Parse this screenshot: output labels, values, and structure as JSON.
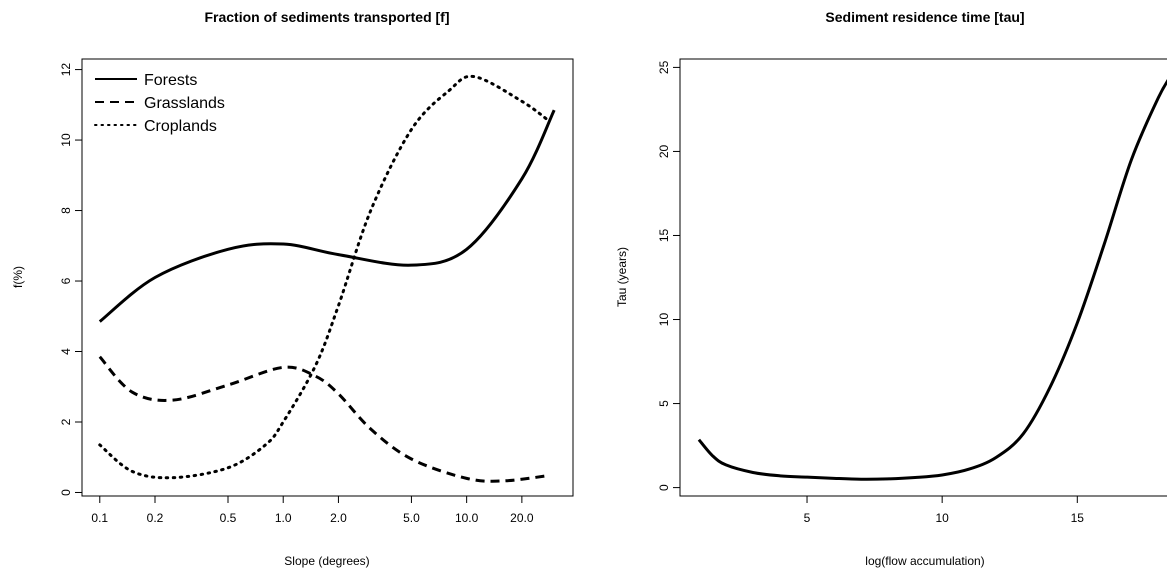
{
  "chart_data": [
    {
      "type": "line",
      "title": "Fraction of sediments transported [f]",
      "xlabel": "Slope (degrees)",
      "ylabel": "f(%)",
      "xscale": "log",
      "xlim": [
        0.08,
        38
      ],
      "ylim": [
        -0.1,
        12.3
      ],
      "xticks": [
        "0.1",
        "0.2",
        "0.5",
        "1.0",
        "2.0",
        "5.0",
        "10.0",
        "20.0"
      ],
      "yticks": [
        "0",
        "2",
        "4",
        "6",
        "8",
        "10",
        "12"
      ],
      "legend": "top-left",
      "series": [
        {
          "name": "Forests",
          "style": "solid",
          "x": [
            0.1,
            0.2,
            0.5,
            1.0,
            2.0,
            5.0,
            10.0,
            20.0,
            30.0
          ],
          "y": [
            4.85,
            6.1,
            6.9,
            7.05,
            6.75,
            6.45,
            6.9,
            8.9,
            10.85
          ]
        },
        {
          "name": "Grasslands",
          "style": "dashed",
          "x": [
            0.1,
            0.15,
            0.25,
            0.5,
            1.0,
            1.5,
            2.0,
            3.0,
            5.0,
            10.0,
            16.0,
            28.0
          ],
          "y": [
            3.85,
            2.85,
            2.62,
            3.05,
            3.55,
            3.3,
            2.8,
            1.8,
            0.95,
            0.4,
            0.33,
            0.48
          ]
        },
        {
          "name": "Croplands",
          "style": "dotted",
          "x": [
            0.1,
            0.15,
            0.25,
            0.5,
            0.8,
            1.0,
            1.5,
            2.0,
            3.0,
            5.0,
            8.0,
            11.0,
            20.0,
            28.0
          ],
          "y": [
            1.35,
            0.6,
            0.42,
            0.7,
            1.35,
            2.0,
            3.6,
            5.3,
            8.0,
            10.3,
            11.4,
            11.8,
            11.1,
            10.55
          ]
        }
      ]
    },
    {
      "type": "line",
      "title": "Sediment residence time [tau]",
      "xlabel": "log(flow accumulation)",
      "ylabel": "Tau (years)",
      "xlim": [
        0.3,
        18.8
      ],
      "ylim": [
        -0.5,
        25.5
      ],
      "xticks": [
        "5",
        "10",
        "15"
      ],
      "yticks": [
        "0",
        "5",
        "10",
        "15",
        "20",
        "25"
      ],
      "series": [
        {
          "name": "",
          "style": "solid",
          "x": [
            1.0,
            1.5,
            2.0,
            3.0,
            4.0,
            5.0,
            6.0,
            7.0,
            8.0,
            9.0,
            10.0,
            11.0,
            12.0,
            13.0,
            14.0,
            15.0,
            16.0,
            17.0,
            18.0,
            18.5
          ],
          "y": [
            2.85,
            1.9,
            1.35,
            0.9,
            0.7,
            0.62,
            0.55,
            0.5,
            0.52,
            0.6,
            0.75,
            1.1,
            1.8,
            3.2,
            6.0,
            9.8,
            14.5,
            19.5,
            23.2,
            24.6
          ]
        }
      ]
    }
  ]
}
